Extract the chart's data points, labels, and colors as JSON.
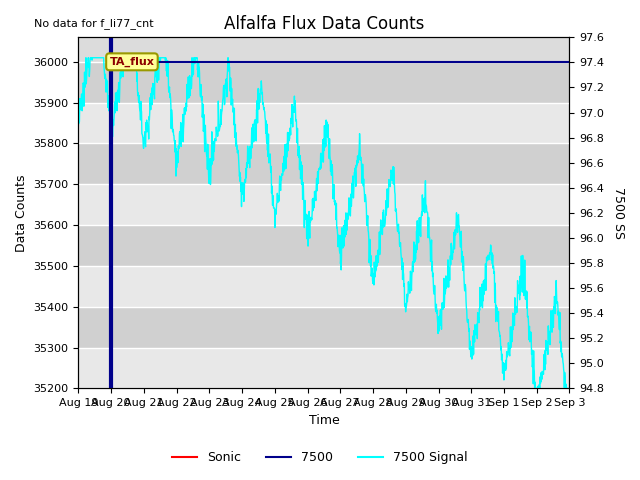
{
  "title": "Alfalfa Flux Data Counts",
  "no_data_label": "No data for f_li77_cnt",
  "xlabel": "Time",
  "ylabel_left": "Data Counts",
  "ylabel_right": "7500 SS",
  "x_tick_labels": [
    "Aug 19",
    "Aug 20",
    "Aug 21",
    "Aug 22",
    "Aug 23",
    "Aug 24",
    "Aug 25",
    "Aug 26",
    "Aug 27",
    "Aug 28",
    "Aug 29",
    "Aug 30",
    "Aug 31",
    "Sep 1",
    "Sep 2",
    "Sep 3"
  ],
  "ylim_left": [
    35200,
    36060
  ],
  "ylim_right": [
    94.8,
    97.6
  ],
  "yticks_left": [
    35200,
    35300,
    35400,
    35500,
    35600,
    35700,
    35800,
    35900,
    36000
  ],
  "yticks_right": [
    94.8,
    95.0,
    95.2,
    95.4,
    95.6,
    95.8,
    96.0,
    96.2,
    96.4,
    96.6,
    96.8,
    97.0,
    97.2,
    97.4,
    97.6
  ],
  "annotation_label": "TA_flux",
  "line_7500_color": "#00008B",
  "line_signal_color": "#00FFFF",
  "line_sonic_color": "red",
  "plot_bg_color": "#dcdcdc",
  "band_color_light": "#e8e8e8",
  "band_color_dark": "#d0d0d0"
}
